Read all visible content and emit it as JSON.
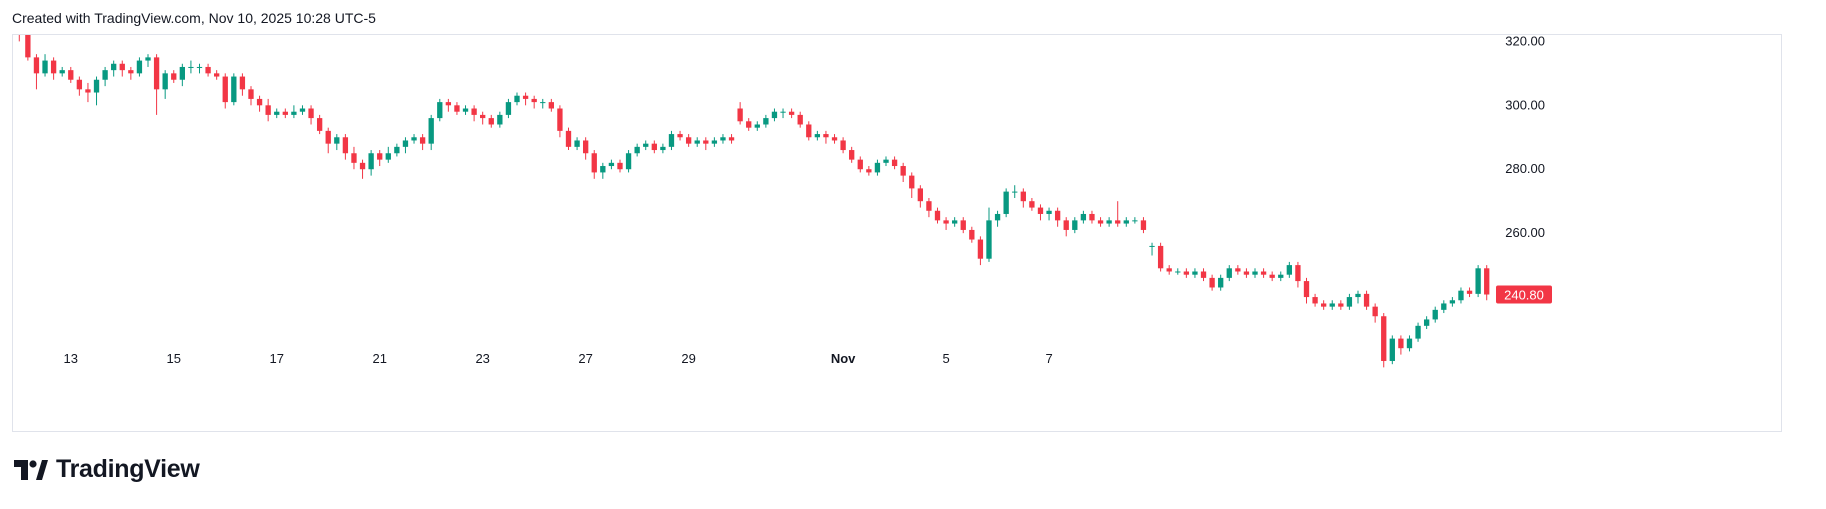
{
  "header": {
    "text": "Created with TradingView.com, Nov 10, 2025 10:28 UTC-5"
  },
  "brand": {
    "name": "TradingView"
  },
  "colors": {
    "up": "#089981",
    "down": "#f23645",
    "grid": "#e0e3eb",
    "text": "#131722"
  },
  "chart_data": {
    "type": "candlestick",
    "title": "",
    "ylim": [
      225,
      322
    ],
    "y_ticks": [
      320,
      300,
      280,
      260
    ],
    "x_ticks": [
      {
        "label": "13",
        "index": 6
      },
      {
        "label": "15",
        "index": 18
      },
      {
        "label": "17",
        "index": 30
      },
      {
        "label": "21",
        "index": 42
      },
      {
        "label": "23",
        "index": 54
      },
      {
        "label": "27",
        "index": 66
      },
      {
        "label": "29",
        "index": 78
      },
      {
        "label": "Nov",
        "index": 96,
        "bold": true
      },
      {
        "label": "5",
        "index": 108
      },
      {
        "label": "7",
        "index": 120
      }
    ],
    "last_price": 240.8,
    "candles": [
      [
        324,
        322,
        325,
        320
      ],
      [
        322,
        315,
        324,
        314
      ],
      [
        315,
        310,
        316,
        305
      ],
      [
        310,
        314,
        316,
        309
      ],
      [
        314,
        310,
        315,
        308
      ],
      [
        310,
        311,
        312,
        309
      ],
      [
        311,
        308,
        312,
        307
      ],
      [
        308,
        305,
        309,
        303
      ],
      [
        305,
        304,
        307,
        301
      ],
      [
        304,
        308,
        309,
        300
      ],
      [
        308,
        311,
        312,
        306
      ],
      [
        311,
        313,
        314,
        309
      ],
      [
        313,
        311,
        314,
        309
      ],
      [
        311,
        310,
        312,
        308
      ],
      [
        310,
        314,
        315,
        309
      ],
      [
        314,
        315,
        316,
        312
      ],
      [
        315,
        305,
        316,
        297
      ],
      [
        305,
        310,
        311,
        302
      ],
      [
        310,
        308,
        311,
        307
      ],
      [
        308,
        312,
        313,
        306
      ],
      [
        312,
        312,
        314,
        310
      ],
      [
        312,
        312,
        313,
        310
      ],
      [
        312,
        310,
        313,
        309
      ],
      [
        310,
        309,
        311,
        308
      ],
      [
        309,
        301,
        310,
        299
      ],
      [
        301,
        309,
        310,
        300
      ],
      [
        309,
        305,
        310,
        303
      ],
      [
        305,
        302,
        306,
        300
      ],
      [
        302,
        300,
        303,
        298
      ],
      [
        300,
        297,
        302,
        295
      ],
      [
        297,
        298,
        299,
        296
      ],
      [
        298,
        297,
        299,
        296
      ],
      [
        297,
        298,
        300,
        296
      ],
      [
        298,
        299,
        300,
        297
      ],
      [
        299,
        296,
        300,
        294
      ],
      [
        296,
        292,
        297,
        291
      ],
      [
        292,
        288,
        293,
        285
      ],
      [
        288,
        290,
        291,
        286
      ],
      [
        290,
        285,
        291,
        283
      ],
      [
        285,
        282,
        287,
        280
      ],
      [
        282,
        280,
        283,
        277
      ],
      [
        280,
        285,
        286,
        278
      ],
      [
        285,
        283,
        286,
        281
      ],
      [
        283,
        285,
        287,
        282
      ],
      [
        285,
        287,
        288,
        284
      ],
      [
        287,
        289,
        290,
        285
      ],
      [
        289,
        290,
        291,
        288
      ],
      [
        290,
        288,
        291,
        286
      ],
      [
        288,
        296,
        297,
        286
      ],
      [
        296,
        301,
        302,
        295
      ],
      [
        301,
        300,
        302,
        298
      ],
      [
        300,
        298,
        301,
        297
      ],
      [
        298,
        299,
        300,
        297
      ],
      [
        299,
        297,
        300,
        295
      ],
      [
        297,
        296,
        298,
        294
      ],
      [
        296,
        294,
        297,
        293
      ],
      [
        294,
        297,
        298,
        293
      ],
      [
        297,
        301,
        302,
        296
      ],
      [
        301,
        303,
        304,
        300
      ],
      [
        303,
        302,
        304,
        300
      ],
      [
        302,
        301,
        303,
        299
      ],
      [
        301,
        301,
        302,
        299
      ],
      [
        301,
        299,
        302,
        298
      ],
      [
        299,
        292,
        300,
        290
      ],
      [
        292,
        287,
        293,
        286
      ],
      [
        287,
        289,
        290,
        286
      ],
      [
        289,
        285,
        290,
        283
      ],
      [
        285,
        279,
        286,
        277
      ],
      [
        279,
        281,
        282,
        277
      ],
      [
        281,
        282,
        283,
        280
      ],
      [
        282,
        280,
        283,
        279
      ],
      [
        280,
        285,
        286,
        279
      ],
      [
        285,
        287,
        288,
        284
      ],
      [
        287,
        288,
        289,
        286
      ],
      [
        288,
        286,
        289,
        285
      ],
      [
        286,
        287,
        288,
        285
      ],
      [
        287,
        291,
        292,
        286
      ],
      [
        291,
        290,
        292,
        289
      ],
      [
        290,
        288,
        291,
        287
      ],
      [
        288,
        289,
        290,
        287
      ],
      [
        289,
        288,
        290,
        286
      ],
      [
        288,
        289,
        290,
        287
      ],
      [
        289,
        290,
        291,
        288
      ],
      [
        290,
        289,
        291,
        288
      ],
      [
        299,
        295,
        301,
        294
      ],
      [
        295,
        293,
        296,
        292
      ],
      [
        293,
        294,
        295,
        292
      ],
      [
        294,
        296,
        297,
        293
      ],
      [
        296,
        298,
        299,
        295
      ],
      [
        298,
        298,
        299,
        296
      ],
      [
        298,
        297,
        299,
        296
      ],
      [
        297,
        294,
        298,
        293
      ],
      [
        294,
        290,
        295,
        289
      ],
      [
        290,
        291,
        292,
        289
      ],
      [
        291,
        290,
        292,
        288
      ],
      [
        290,
        289,
        291,
        288
      ],
      [
        289,
        286,
        290,
        285
      ],
      [
        286,
        283,
        287,
        282
      ],
      [
        283,
        280,
        284,
        279
      ],
      [
        280,
        279,
        281,
        278
      ],
      [
        279,
        282,
        283,
        278
      ],
      [
        282,
        283,
        284,
        281
      ],
      [
        283,
        281,
        284,
        280
      ],
      [
        281,
        278,
        282,
        276
      ],
      [
        278,
        274,
        279,
        271
      ],
      [
        274,
        270,
        275,
        268
      ],
      [
        270,
        267,
        271,
        265
      ],
      [
        267,
        264,
        268,
        263
      ],
      [
        264,
        263,
        265,
        261
      ],
      [
        263,
        264,
        265,
        262
      ],
      [
        264,
        261,
        265,
        260
      ],
      [
        261,
        258,
        262,
        257
      ],
      [
        258,
        252,
        259,
        250
      ],
      [
        252,
        264,
        268,
        251
      ],
      [
        264,
        266,
        267,
        262
      ],
      [
        266,
        273,
        274,
        265
      ],
      [
        273,
        273,
        275,
        271
      ],
      [
        273,
        270,
        274,
        268
      ],
      [
        270,
        268,
        271,
        267
      ],
      [
        268,
        266,
        269,
        264
      ],
      [
        266,
        267,
        268,
        264
      ],
      [
        267,
        264,
        268,
        262
      ],
      [
        264,
        261,
        265,
        259
      ],
      [
        261,
        264,
        265,
        260
      ],
      [
        264,
        266,
        267,
        263
      ],
      [
        266,
        264,
        267,
        263
      ],
      [
        264,
        263,
        265,
        262
      ],
      [
        263,
        264,
        265,
        262
      ],
      [
        264,
        263,
        270,
        262
      ],
      [
        263,
        264,
        265,
        262
      ],
      [
        264,
        264,
        265,
        263
      ],
      [
        264,
        261,
        265,
        260
      ],
      [
        256,
        256,
        257,
        253
      ],
      [
        256,
        249,
        257,
        248
      ],
      [
        249,
        248,
        250,
        247
      ],
      [
        248,
        248,
        249,
        247
      ],
      [
        248,
        247,
        249,
        246
      ],
      [
        247,
        248,
        249,
        246
      ],
      [
        248,
        246,
        249,
        245
      ],
      [
        246,
        243,
        247,
        242
      ],
      [
        243,
        246,
        247,
        242
      ],
      [
        246,
        249,
        250,
        245
      ],
      [
        249,
        248,
        250,
        247
      ],
      [
        248,
        247,
        249,
        246
      ],
      [
        247,
        248,
        249,
        246
      ],
      [
        248,
        247,
        249,
        246
      ],
      [
        247,
        246,
        248,
        245
      ],
      [
        246,
        247,
        248,
        245
      ],
      [
        247,
        250,
        251,
        246
      ],
      [
        250,
        245,
        251,
        243
      ],
      [
        245,
        240,
        246,
        238
      ],
      [
        240,
        238,
        241,
        237
      ],
      [
        238,
        237,
        239,
        236
      ],
      [
        237,
        238,
        239,
        236
      ],
      [
        238,
        237,
        239,
        236
      ],
      [
        237,
        240,
        241,
        236
      ],
      [
        240,
        241,
        242,
        238
      ],
      [
        241,
        237,
        242,
        236
      ],
      [
        237,
        234,
        238,
        232
      ],
      [
        234,
        220,
        235,
        218
      ],
      [
        220,
        227,
        228,
        219
      ],
      [
        227,
        224,
        228,
        222
      ],
      [
        224,
        227,
        228,
        223
      ],
      [
        227,
        231,
        232,
        226
      ],
      [
        231,
        233,
        234,
        230
      ],
      [
        233,
        236,
        237,
        232
      ],
      [
        236,
        238,
        239,
        235
      ],
      [
        238,
        239,
        240,
        237
      ],
      [
        239,
        242,
        243,
        238
      ],
      [
        242,
        241,
        243,
        240
      ],
      [
        241,
        249,
        250,
        240
      ],
      [
        249,
        240.8,
        250,
        239
      ]
    ]
  }
}
